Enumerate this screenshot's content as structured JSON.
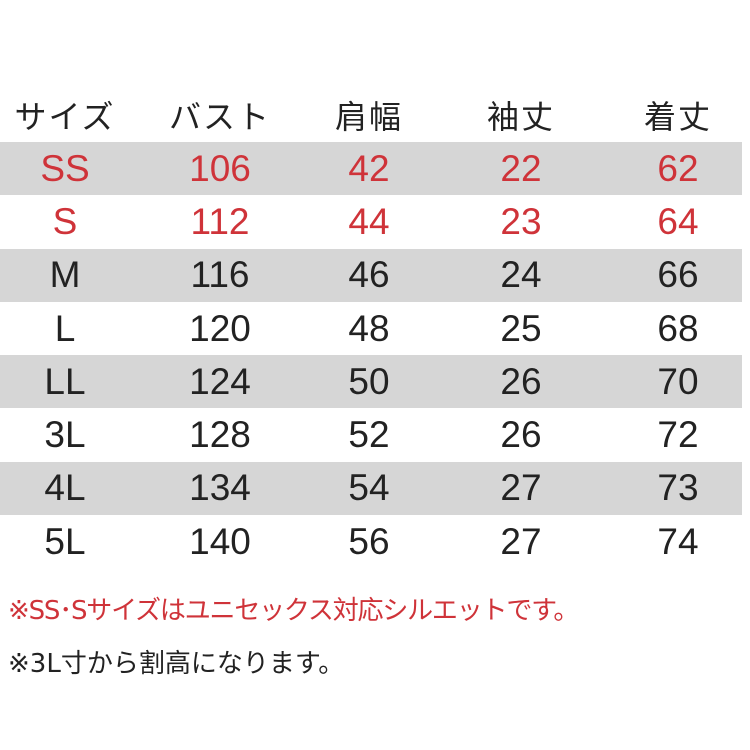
{
  "headers": [
    "サイズ",
    "バスト",
    "肩幅",
    "袖丈",
    "着丈"
  ],
  "rows": [
    [
      "SS",
      "106",
      "42",
      "22",
      "62"
    ],
    [
      "S",
      "112",
      "44",
      "23",
      "64"
    ],
    [
      "M",
      "116",
      "46",
      "24",
      "66"
    ],
    [
      "L",
      "120",
      "48",
      "25",
      "68"
    ],
    [
      "LL",
      "124",
      "50",
      "26",
      "70"
    ],
    [
      "3L",
      "128",
      "52",
      "26",
      "72"
    ],
    [
      "4L",
      "134",
      "54",
      "27",
      "73"
    ],
    [
      "5L",
      "140",
      "56",
      "27",
      "74"
    ]
  ],
  "highlight_rows": [
    "SS",
    "S"
  ],
  "colors": {
    "highlight": "#cf3339",
    "stripe": "#d6d6d6",
    "text": "#222222"
  },
  "notes": [
    "※SS･Sサイズはユニセックス対応シルエットです。",
    "※3L寸から割高になります。"
  ]
}
